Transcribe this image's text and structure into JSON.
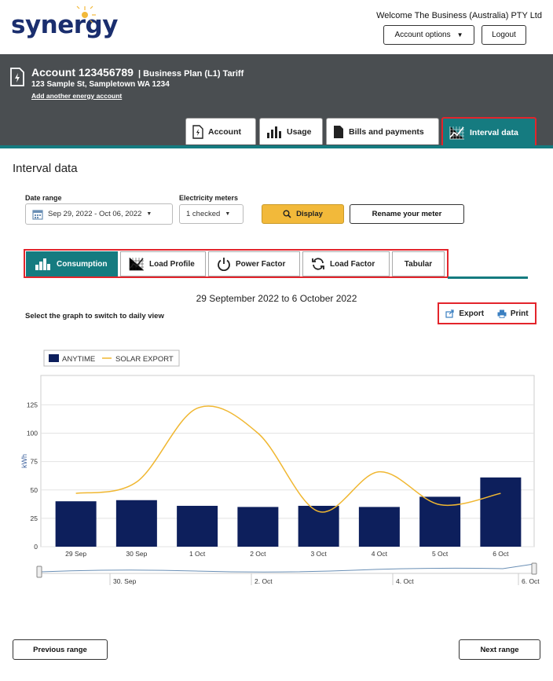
{
  "header": {
    "logo_text": "synergy",
    "welcome": "Welcome The Business (Australia) PTY Ltd",
    "account_options": "Account options",
    "logout": "Logout"
  },
  "account": {
    "title": "Account 123456789",
    "plan": "| Business Plan (L1) Tariff",
    "address": "123 Sample St, Sampletown WA 1234",
    "add_link": "Add another energy account"
  },
  "tabs": [
    {
      "label": "Account",
      "icon": "document-bolt-icon"
    },
    {
      "label": "Usage",
      "icon": "bar-chart-icon"
    },
    {
      "label": "Bills and payments",
      "icon": "document-icon"
    },
    {
      "label": "Interval data",
      "icon": "grid-chart-icon",
      "active": true
    }
  ],
  "page_title": "Interval data",
  "filters": {
    "date_range_label": "Date range",
    "date_range_value": "Sep 29, 2022 - Oct 06, 2022",
    "meters_label": "Electricity meters",
    "meters_value": "1 checked",
    "display_button": "Display",
    "rename_button": "Rename your meter"
  },
  "subtabs": [
    {
      "label": "Consumption",
      "icon": "bar-chart-icon",
      "active": true
    },
    {
      "label": "Load Profile",
      "icon": "grid-chart-icon"
    },
    {
      "label": "Power Factor",
      "icon": "power-icon"
    },
    {
      "label": "Load Factor",
      "icon": "refresh-icon"
    },
    {
      "label": "Tabular"
    }
  ],
  "range_text": "29 September 2022 to 6 October 2022",
  "hint": "Select the graph to switch to daily view",
  "actions": {
    "export": "Export",
    "print": "Print"
  },
  "chart_data": {
    "type": "bar",
    "categories": [
      "29 Sep",
      "30 Sep",
      "1 Oct",
      "2 Oct",
      "3 Oct",
      "4 Oct",
      "5 Oct",
      "6 Oct"
    ],
    "series": [
      {
        "name": "ANYTIME",
        "type": "bar",
        "values": [
          40,
          41,
          36,
          35,
          36,
          35,
          44,
          61
        ],
        "color": "#0d1f5c"
      },
      {
        "name": "SOLAR EXPORT",
        "type": "line",
        "values": [
          47,
          57,
          122,
          100,
          31,
          66,
          37,
          47
        ],
        "color": "#f0b731"
      }
    ],
    "ylabel": "kWh",
    "ylim": [
      0,
      150
    ],
    "yticks": [
      0,
      25,
      50,
      75,
      100,
      125
    ],
    "legend": "top-left",
    "navigator_labels": [
      "30. Sep",
      "2. Oct",
      "4. Oct",
      "6. Oct"
    ]
  },
  "footer": {
    "previous": "Previous range",
    "next": "Next range"
  }
}
